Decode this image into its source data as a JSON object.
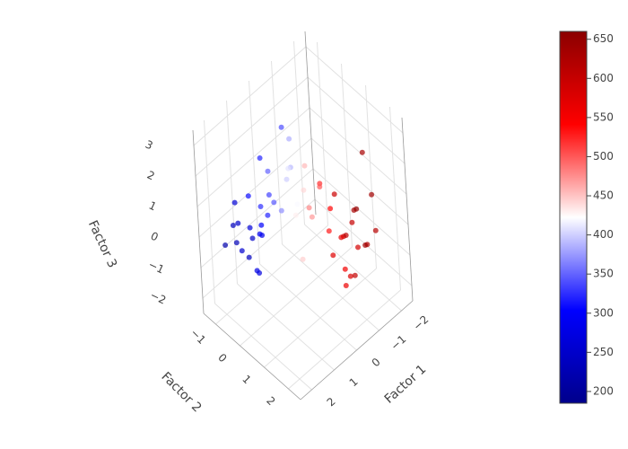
{
  "chart_data": {
    "type": "scatter3d",
    "xlabel": "Factor 1",
    "ylabel": "Factor 2",
    "zlabel": "Factor 3",
    "xlim": [
      -2.5,
      2.5
    ],
    "ylim": [
      -1.5,
      2.5
    ],
    "zlim": [
      -2.5,
      3.5
    ],
    "xticks": [
      {
        "value": -2,
        "label": "−2"
      },
      {
        "value": -1,
        "label": "−1"
      },
      0,
      1,
      2
    ],
    "yticks": [
      {
        "value": -1,
        "label": "−1"
      },
      0,
      1,
      2
    ],
    "zticks": [
      {
        "value": -2,
        "label": "−2"
      },
      {
        "value": -1,
        "label": "−1"
      },
      0,
      1,
      2,
      3
    ],
    "grid": true,
    "opacity": 0.7,
    "colorscale": [
      "#00008b",
      "#0000ff",
      "#ffffff",
      "#ff0000",
      "#8b0000"
    ],
    "clim": [
      185,
      660
    ],
    "colorbar_ticks": [
      200,
      250,
      300,
      350,
      400,
      450,
      500,
      550,
      600,
      650
    ],
    "x": [
      1.2,
      0.9,
      1.5,
      1.1,
      0.7,
      1.6,
      0.8,
      1.3,
      1.0,
      1.8,
      0.6,
      1.4,
      0.5,
      1.9,
      1.2,
      0.9,
      1.7,
      0.4,
      1.1,
      2.1,
      -0.9,
      -0.6,
      -1.2,
      -0.4,
      -1.0,
      -1.5,
      -0.7,
      -1.3,
      -0.2,
      -0.8,
      -1.6,
      -0.5,
      -1.1,
      -0.9,
      -1.8,
      -0.3,
      -1.4,
      -0.6,
      -1.7,
      -1.0,
      0.2,
      0.0,
      0.4,
      -0.1,
      0.3,
      0.1,
      0.5,
      -0.2,
      0.6,
      0.0,
      0.3,
      0.2,
      -0.3,
      0.3,
      0.9,
      -1.9
    ],
    "y": [
      -0.6,
      -0.4,
      -0.8,
      -0.2,
      -0.7,
      -0.3,
      -1.0,
      -0.9,
      0.0,
      -0.6,
      -0.3,
      -0.1,
      -0.8,
      -1.0,
      -1.2,
      0.2,
      0.0,
      -0.5,
      -0.5,
      -0.4,
      1.3,
      1.5,
      1.1,
      1.8,
      1.6,
      1.2,
      1.0,
      1.9,
      1.4,
      2.0,
      1.5,
      1.2,
      0.8,
      1.7,
      1.0,
      1.9,
      2.2,
      0.7,
      1.8,
      1.4,
      0.5,
      0.6,
      0.3,
      0.8,
      0.4,
      0.9,
      0.1,
      0.5,
      0.6,
      0.2,
      0.7,
      0.3,
      1.0,
      0.1,
      -0.3,
      1.3
    ],
    "z": [
      0.1,
      -0.2,
      0.3,
      0.4,
      -0.5,
      -0.4,
      0.6,
      -0.8,
      0.8,
      0.0,
      1.0,
      -0.9,
      0.2,
      -0.3,
      0.5,
      1.3,
      0.5,
      1.5,
      -1.3,
      0.9,
      -0.2,
      0.1,
      -0.5,
      -0.6,
      0.4,
      0.2,
      -0.9,
      -0.3,
      0.5,
      0.0,
      -0.8,
      0.9,
      0.7,
      -1.2,
      -0.1,
      -1.0,
      0.3,
      1.3,
      1.0,
      -1.5,
      1.0,
      1.4,
      1.8,
      0.6,
      2.2,
      1.1,
      0.7,
      2.0,
      2.5,
      0.3,
      -0.6,
      3.0,
      1.6,
      3.3,
      2.4,
      1.9
    ],
    "color_values": [
      265,
      280,
      250,
      300,
      290,
      240,
      310,
      255,
      320,
      230,
      335,
      270,
      325,
      220,
      260,
      345,
      245,
      350,
      275,
      235,
      590,
      570,
      610,
      555,
      600,
      630,
      575,
      620,
      530,
      585,
      640,
      540,
      595,
      605,
      650,
      560,
      615,
      520,
      635,
      580,
      420,
      440,
      400,
      470,
      390,
      480,
      370,
      455,
      410,
      430,
      445,
      385,
      500,
      340,
      320,
      630
    ]
  }
}
